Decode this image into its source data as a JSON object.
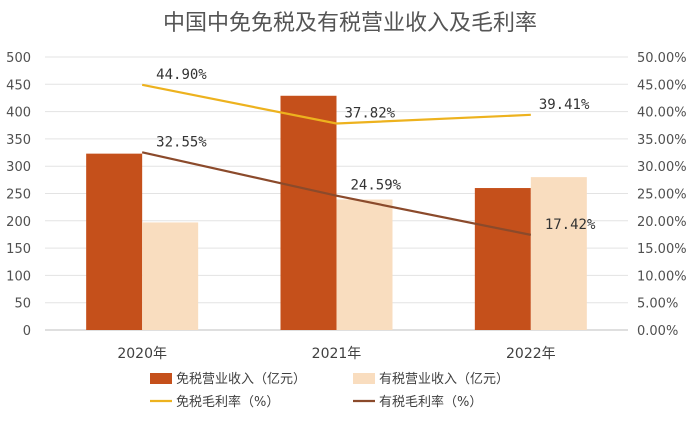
{
  "chart_data": {
    "type": "bar",
    "title": "中国中免免税及有税营业收入及毛利率",
    "categories": [
      "2020年",
      "2021年",
      "2022年"
    ],
    "y_left": {
      "range": [
        0,
        500
      ],
      "ticks": [
        "0",
        "50",
        "100",
        "150",
        "200",
        "250",
        "300",
        "350",
        "400",
        "450",
        "500"
      ]
    },
    "y_right": {
      "range": [
        0,
        50
      ],
      "ticks": [
        "0.00%",
        "5.00%",
        "10.00%",
        "15.00%",
        "20.00%",
        "25.00%",
        "30.00%",
        "35.00%",
        "40.00%",
        "45.00%",
        "50.00%"
      ]
    },
    "bar_series": [
      {
        "name": "免税营业收入（亿元）",
        "values": [
          323,
          429,
          260
        ],
        "color": "#C5501B"
      },
      {
        "name": "有税营业收入（亿元）",
        "values": [
          197,
          239,
          280
        ],
        "color": "#F9DDBF"
      }
    ],
    "line_series": [
      {
        "name": "免税毛利率（%）",
        "values": [
          44.9,
          37.82,
          39.41
        ],
        "labels": [
          "44.90%",
          "37.82%",
          "39.41%"
        ],
        "color": "#EDB21E",
        "axis": "right"
      },
      {
        "name": "有税毛利率（%）",
        "values": [
          32.55,
          24.59,
          17.42
        ],
        "labels": [
          "32.55%",
          "24.59%",
          "17.42%"
        ],
        "color": "#8B4A2B",
        "axis": "right"
      }
    ],
    "grid": true,
    "legend": "bottom"
  }
}
